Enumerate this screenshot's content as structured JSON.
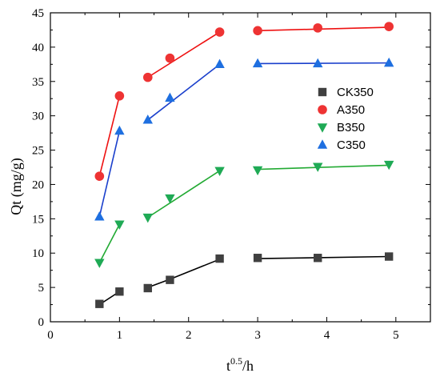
{
  "chart_data": {
    "type": "scatter",
    "xlabel_base": "t",
    "xlabel_sup": "0.5",
    "xlabel_rest": "/h",
    "ylabel": "Qt (mg/g)",
    "xlim": [
      0,
      5.5
    ],
    "ylim": [
      0,
      45
    ],
    "xticks": [
      "0",
      "1",
      "2",
      "3",
      "4",
      "5"
    ],
    "yticks": [
      "0",
      "5",
      "10",
      "15",
      "20",
      "25",
      "30",
      "35",
      "40",
      "45"
    ],
    "grid": false,
    "legend_position": "right",
    "series": [
      {
        "name": "CK350",
        "marker": "square",
        "marker_color": "#404040",
        "line_color": "#000000",
        "x": [
          0.71,
          1.0,
          1.41,
          1.73,
          2.45,
          3.0,
          3.87,
          4.9
        ],
        "y": [
          2.6,
          4.4,
          4.9,
          6.1,
          9.2,
          9.3,
          9.3,
          9.5
        ],
        "fits": [
          {
            "x": [
              0.71,
              1.0
            ],
            "y": [
              2.5,
              4.4
            ]
          },
          {
            "x": [
              1.41,
              1.73,
              2.45
            ],
            "y": [
              5.0,
              6.2,
              9.1
            ]
          },
          {
            "x": [
              3.0,
              4.9
            ],
            "y": [
              9.2,
              9.5
            ]
          }
        ]
      },
      {
        "name": "A350",
        "marker": "circle",
        "marker_color": "#ee3333",
        "line_color": "#ee1111",
        "x": [
          0.71,
          1.0,
          1.41,
          1.73,
          2.45,
          3.0,
          3.87,
          4.9
        ],
        "y": [
          21.2,
          32.9,
          35.6,
          38.4,
          42.2,
          42.4,
          42.8,
          43.0
        ],
        "fits": [
          {
            "x": [
              0.71,
              1.0
            ],
            "y": [
              21.2,
              32.9
            ]
          },
          {
            "x": [
              1.41,
              2.45
            ],
            "y": [
              35.6,
              42.2
            ]
          },
          {
            "x": [
              3.0,
              4.9
            ],
            "y": [
              42.4,
              42.9
            ]
          }
        ]
      },
      {
        "name": "B350",
        "marker": "triangle-down",
        "marker_color": "#1faa55",
        "line_color": "#22aa33",
        "x": [
          0.71,
          1.0,
          1.41,
          1.73,
          2.45,
          3.0,
          3.87,
          4.9
        ],
        "y": [
          8.6,
          14.2,
          15.2,
          18.0,
          22.0,
          22.1,
          22.6,
          22.9
        ],
        "fits": [
          {
            "x": [
              0.71,
              1.0
            ],
            "y": [
              8.6,
              14.2
            ]
          },
          {
            "x": [
              1.41,
              2.45
            ],
            "y": [
              15.2,
              22.0
            ]
          },
          {
            "x": [
              3.0,
              4.9
            ],
            "y": [
              22.2,
              22.8
            ]
          }
        ]
      },
      {
        "name": "C350",
        "marker": "triangle-up",
        "marker_color": "#1e6fe0",
        "line_color": "#1a3fcc",
        "x": [
          0.71,
          1.0,
          1.41,
          1.73,
          2.45,
          3.0,
          3.87,
          4.9
        ],
        "y": [
          15.3,
          27.8,
          29.4,
          32.6,
          37.5,
          37.6,
          37.6,
          37.7
        ],
        "fits": [
          {
            "x": [
              0.71,
              1.0
            ],
            "y": [
              15.3,
              27.8
            ]
          },
          {
            "x": [
              1.41,
              2.45
            ],
            "y": [
              29.4,
              37.5
            ]
          },
          {
            "x": [
              3.0,
              4.9
            ],
            "y": [
              37.6,
              37.7
            ]
          }
        ]
      }
    ]
  }
}
